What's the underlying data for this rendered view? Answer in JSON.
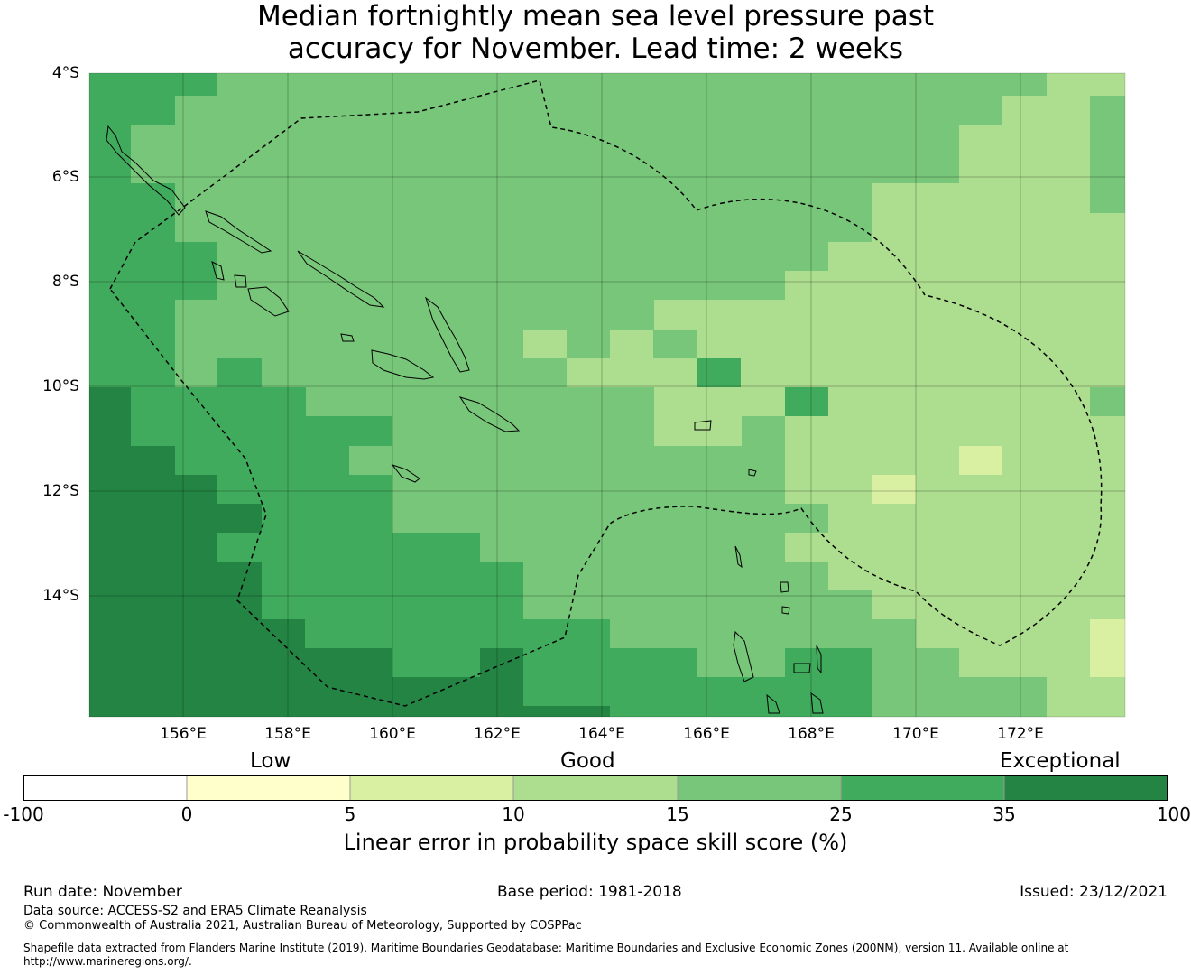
{
  "title_line1": "Median fortnightly mean sea level pressure past",
  "title_line2": "accuracy for November. Lead time: 2 weeks",
  "map": {
    "lon_range": [
      154.2,
      174.0
    ],
    "lat_range": [
      -16.3,
      -4.0
    ],
    "lat_ticks": [
      {
        "value": -4,
        "label": "4°S"
      },
      {
        "value": -6,
        "label": "6°S"
      },
      {
        "value": -8,
        "label": "8°S"
      },
      {
        "value": -10,
        "label": "10°S"
      },
      {
        "value": -12,
        "label": "12°S"
      },
      {
        "value": -14,
        "label": "14°S"
      }
    ],
    "lon_ticks": [
      {
        "value": 156,
        "label": "156°E"
      },
      {
        "value": 158,
        "label": "158°E"
      },
      {
        "value": 160,
        "label": "160°E"
      },
      {
        "value": 162,
        "label": "162°E"
      },
      {
        "value": 164,
        "label": "164°E"
      },
      {
        "value": 166,
        "label": "166°E"
      },
      {
        "value": 168,
        "label": "168°E"
      },
      {
        "value": 170,
        "label": "170°E"
      },
      {
        "value": 172,
        "label": "172°E"
      }
    ]
  },
  "colorbar": {
    "category_labels": [
      "Low",
      "Good",
      "Exceptional"
    ],
    "ticks": [
      "-100",
      "0",
      "5",
      "10",
      "15",
      "25",
      "35",
      "100"
    ],
    "colors": [
      "#ffffff",
      "#ffffcc",
      "#d9f0a3",
      "#addd8e",
      "#78c679",
      "#41ab5d",
      "#238443"
    ],
    "title": "Linear error in probability space skill score (%)"
  },
  "footer": {
    "run_date": "Run date: November",
    "base_period": "Base period: 1981-2018",
    "issued": "Issued: 23/12/2021",
    "data_source": "Data source: ACCESS-S2 and ERA5 Climate Reanalysis",
    "copyright": "© Commonwealth of Australia 2021, Australian Bureau of Meteorology, Supported by COSPPac",
    "shapefile": "Shapefile data extracted from Flanders Marine Institute (2019), Maritime Boundaries Geodatabase: Maritime Boundaries and Exclusive Economic Zones (200NM), version 11. Available online at http://www.marineregions.org/."
  }
}
